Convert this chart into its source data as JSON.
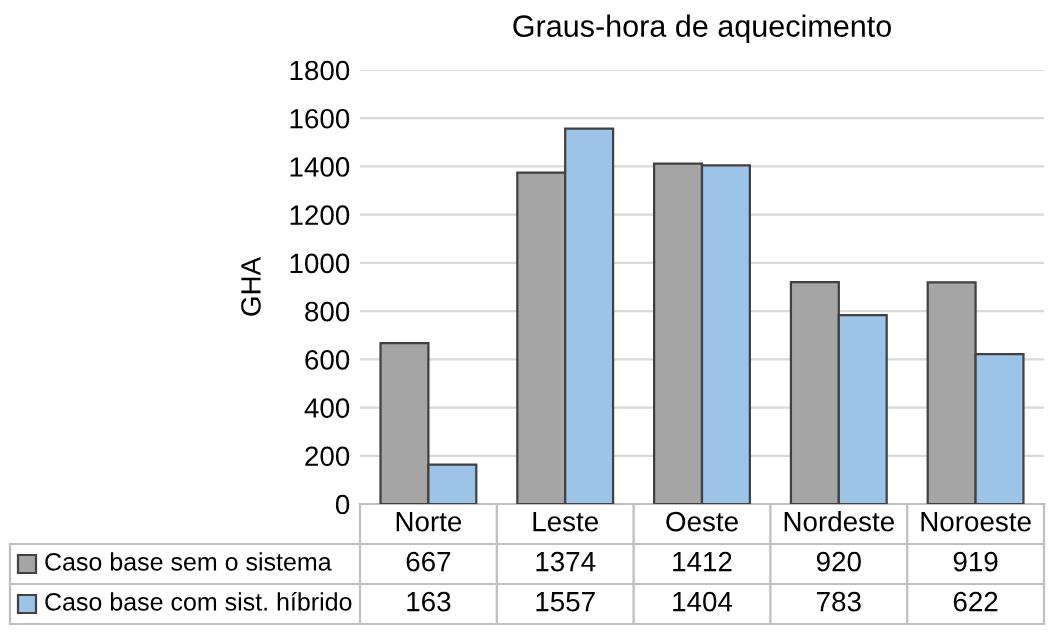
{
  "chart_data": {
    "type": "bar",
    "title": "Graus-hora de aquecimento",
    "ylabel": "GHA",
    "categories": [
      "Norte",
      "Leste",
      "Oeste",
      "Nordeste",
      "Noroeste"
    ],
    "series": [
      {
        "name": "Caso base sem o sistema",
        "color": "#a5a5a5",
        "values": [
          667,
          1374,
          1412,
          920,
          919
        ]
      },
      {
        "name": "Caso base com sist. híbrido",
        "color": "#9dc3e6",
        "values": [
          163,
          1557,
          1404,
          783,
          622
        ]
      }
    ],
    "ylim": [
      0,
      1800
    ],
    "yticks": [
      0,
      200,
      400,
      600,
      800,
      1000,
      1200,
      1400,
      1600,
      1800
    ],
    "grid": "y",
    "legend": "bottom",
    "data_labels": true
  }
}
